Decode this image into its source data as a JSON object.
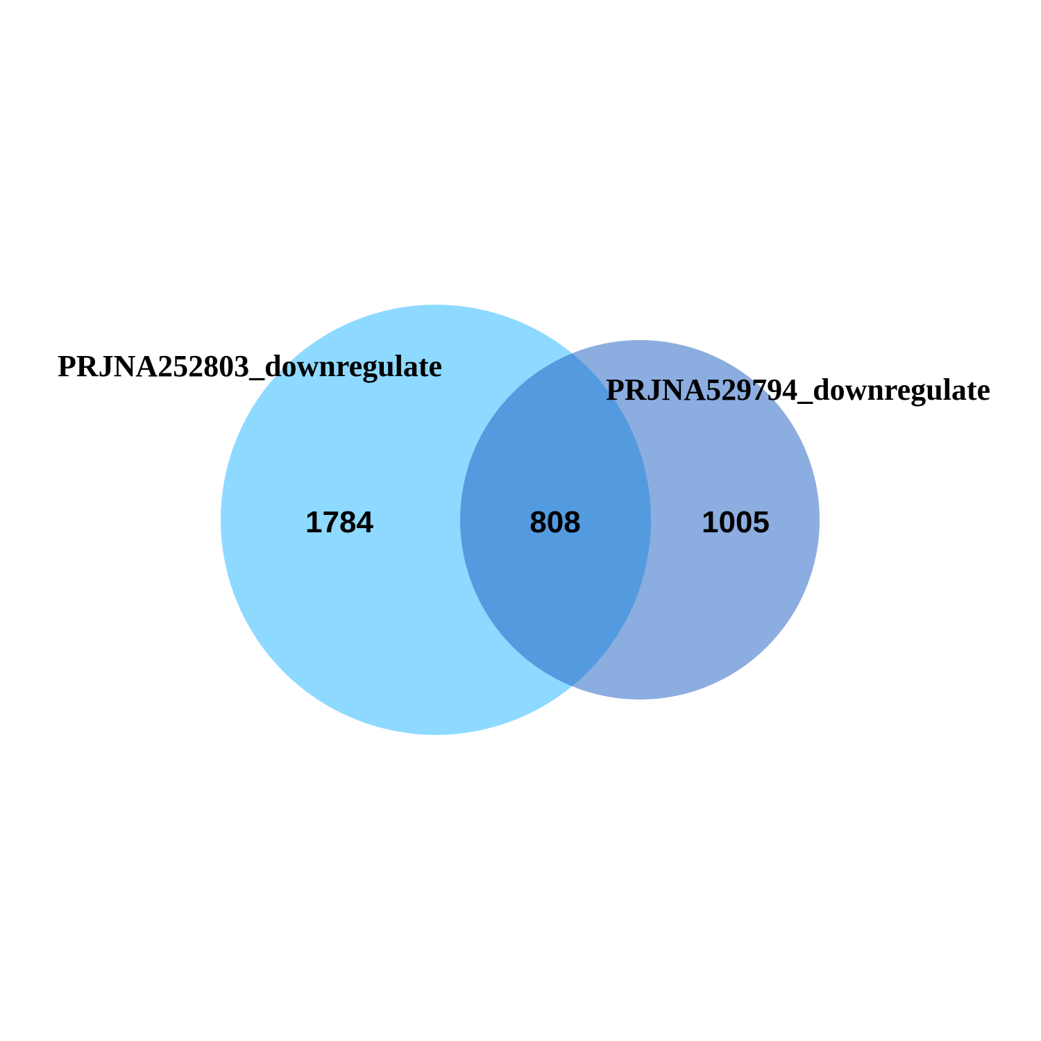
{
  "venn": {
    "sets": [
      {
        "name": "PRJNA252803_downregulate",
        "color": "#1EB4FF",
        "opacity": 0.5
      },
      {
        "name": "PRJNA529794_downregulate",
        "color": "#1A5BC0",
        "opacity": 0.5
      }
    ],
    "counts": {
      "only_a": "1784",
      "intersection": "808",
      "only_b": "1005"
    }
  }
}
